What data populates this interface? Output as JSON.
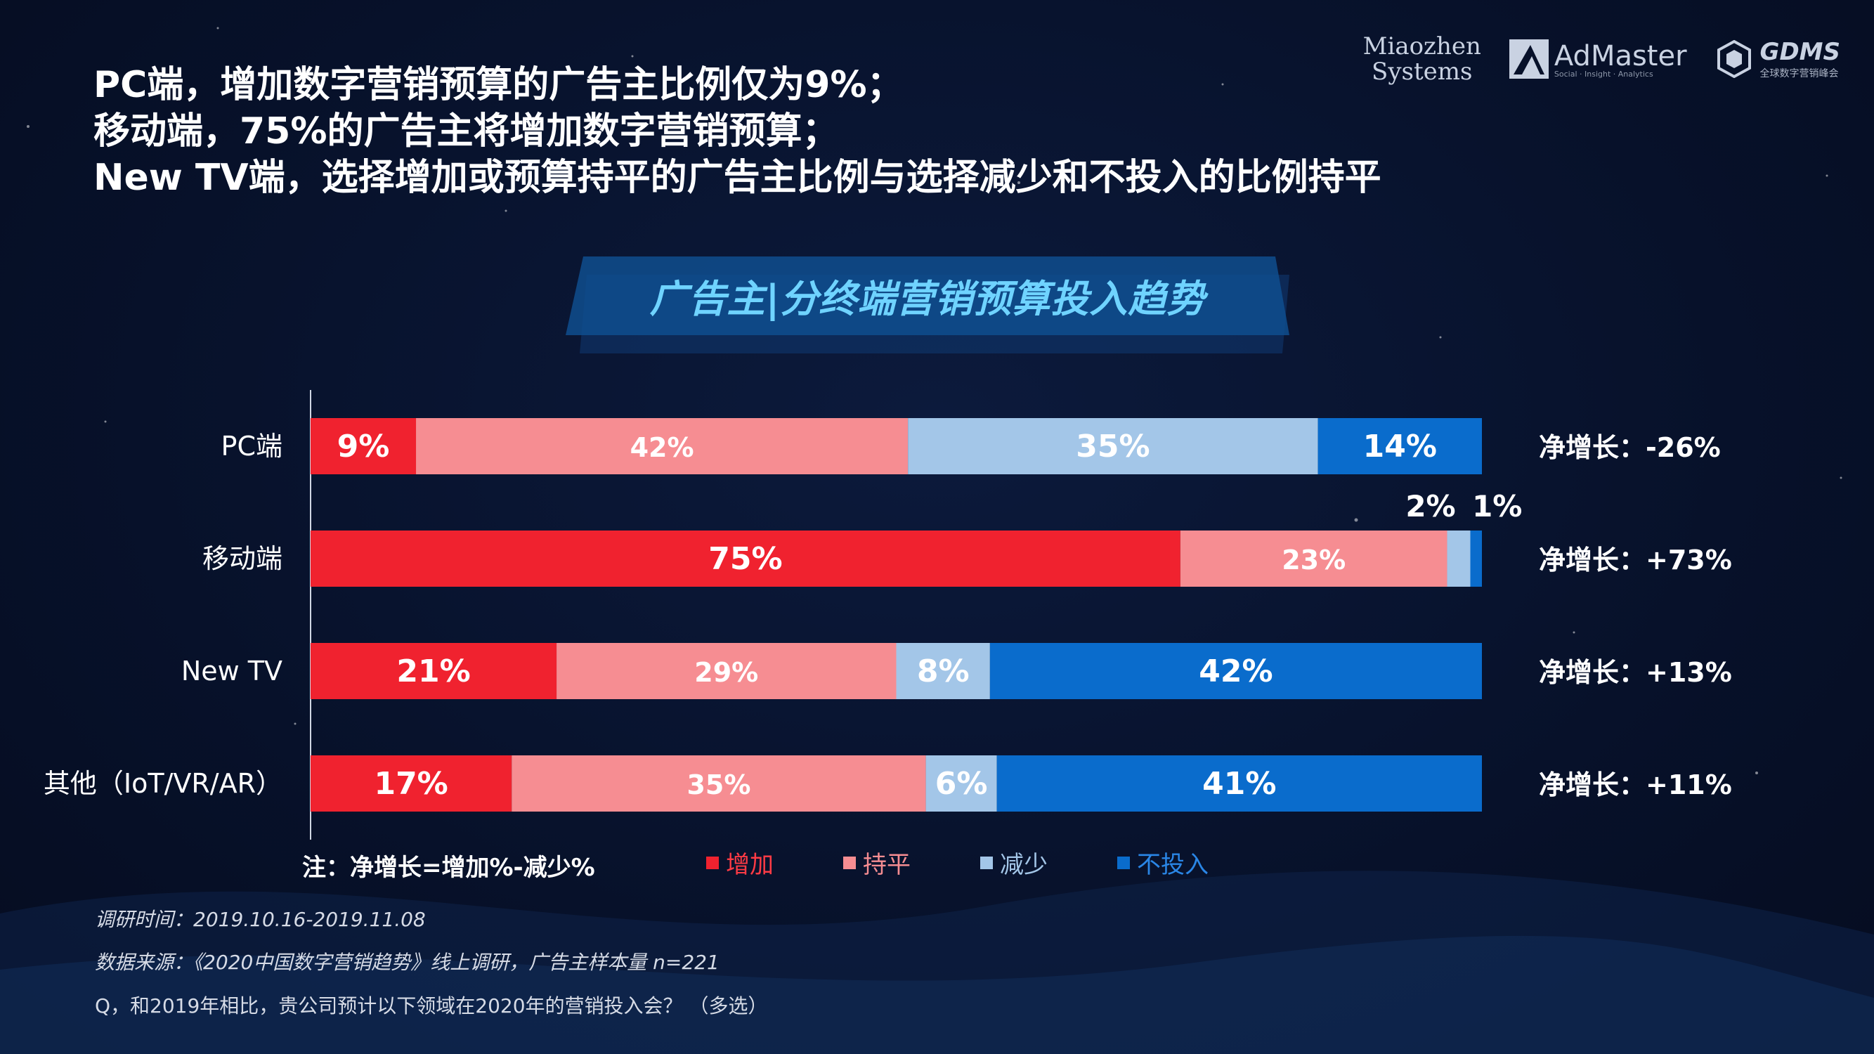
{
  "headline": {
    "line1": "PC端，增加数字营销预算的广告主比例仅为9%；",
    "line2": "移动端，75%的广告主将增加数字营销预算；",
    "line3": "New TV端，选择增加或预算持平的广告主比例与选择减少和不投入的比例持平"
  },
  "logos": {
    "miaozhen_line1": "Miaozhen",
    "miaozhen_line2": "Systems",
    "admaster": "AdMaster",
    "admaster_sub": "Social · Insight · Analytics",
    "gdms": "GDMS",
    "gdms_sub": "全球数字营销峰会"
  },
  "chart_data": {
    "type": "bar",
    "orientation": "horizontal",
    "stacked": true,
    "title": "广告主|分终端营销预算投入趋势",
    "categories": [
      "PC端",
      "移动端",
      "New TV",
      "其他（IoT/VR/AR）"
    ],
    "series": [
      {
        "name": "增加",
        "color": "#f0222f",
        "values": [
          9,
          75,
          21,
          17
        ],
        "labels": [
          "9%",
          "75%",
          "21%",
          "17%"
        ]
      },
      {
        "name": "持平",
        "color": "#f68d92",
        "values": [
          42,
          23,
          29,
          35
        ],
        "labels": [
          "42%",
          "23%",
          "29%",
          "35%"
        ]
      },
      {
        "name": "减少",
        "color": "#a3c6e8",
        "values": [
          35,
          2,
          8,
          6
        ],
        "labels": [
          "35%",
          "2%",
          "8%",
          "6%"
        ]
      },
      {
        "name": "不投入",
        "color": "#0a6ccc",
        "values": [
          14,
          1,
          42,
          41
        ],
        "labels": [
          "14%",
          "1%",
          "42%",
          "41%"
        ]
      }
    ],
    "net_growth": [
      "净增长：-26%",
      "净增长：+73%",
      "净增长：+13%",
      "净增长：+11%"
    ],
    "legend_position": "bottom"
  },
  "note": "注：净增长=增加%-减少%",
  "footnotes": {
    "time": "调研时间：2019.10.16-2019.11.08",
    "source": "数据来源：《2020中国数字营销趋势》线上调研，广告主样本量 n=221",
    "question": "Q，和2019年相比，贵公司预计以下领域在2020年的营销投入会？ （多选）"
  }
}
